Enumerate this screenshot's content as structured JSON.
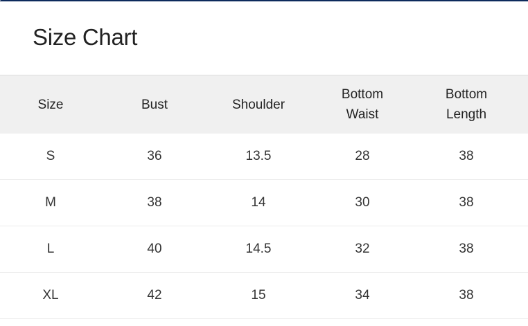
{
  "title": "Size Chart",
  "colors": {
    "top_border": "#0d2a5c",
    "header_bg": "#f0f0f0"
  },
  "table": {
    "headers": [
      "Size",
      "Bust",
      "Shoulder",
      "Bottom Waist",
      "Bottom Length"
    ],
    "rows": [
      [
        "S",
        "36",
        "13.5",
        "28",
        "38"
      ],
      [
        "M",
        "38",
        "14",
        "30",
        "38"
      ],
      [
        "L",
        "40",
        "14.5",
        "32",
        "38"
      ],
      [
        "XL",
        "42",
        "15",
        "34",
        "38"
      ]
    ]
  }
}
